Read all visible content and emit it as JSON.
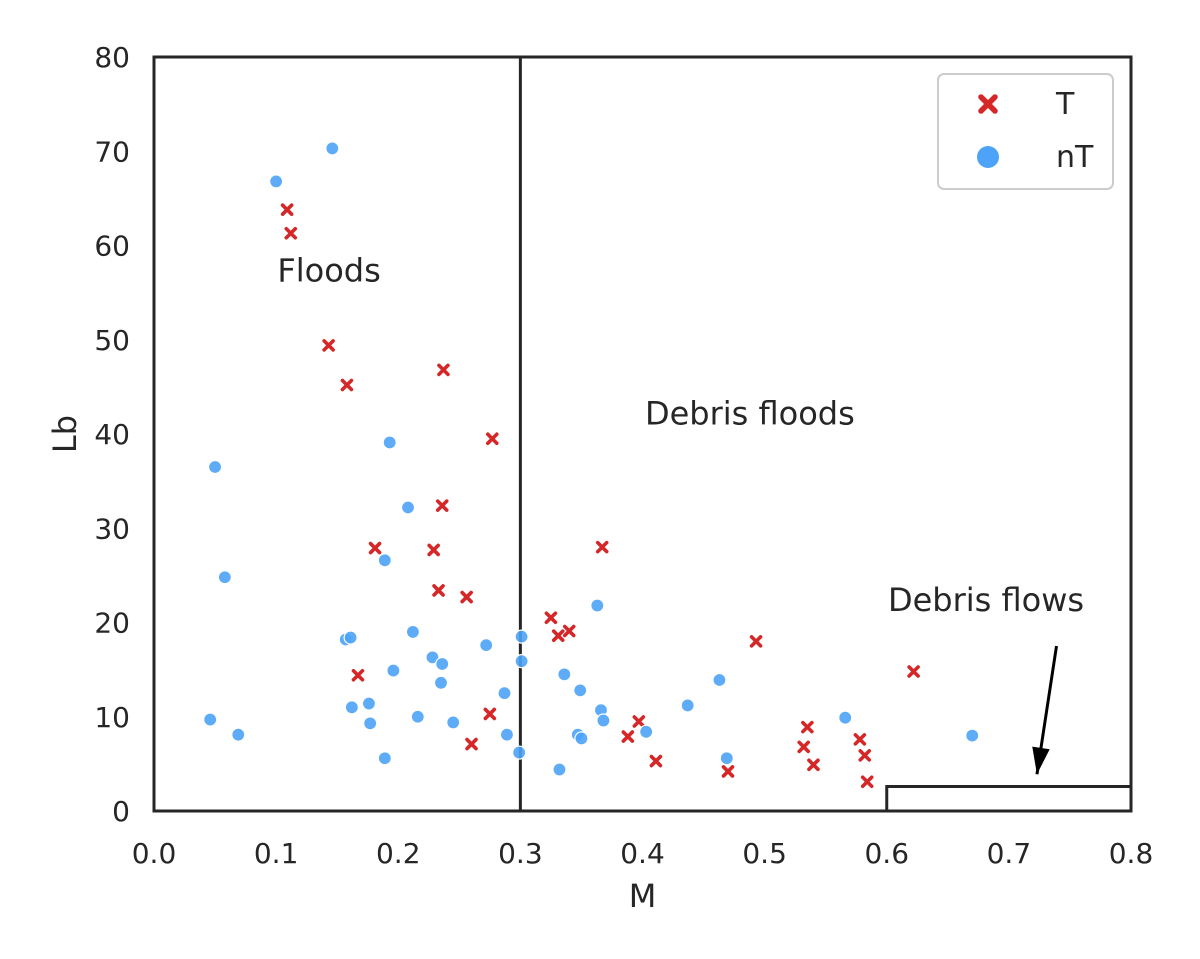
{
  "chart_data": {
    "type": "scatter",
    "xlabel": "M",
    "ylabel": "Lb",
    "xlim": [
      0.0,
      0.8
    ],
    "ylim": [
      0,
      80
    ],
    "x_ticks": [
      "0.0",
      "0.1",
      "0.2",
      "0.3",
      "0.4",
      "0.5",
      "0.6",
      "0.7",
      "0.8"
    ],
    "y_ticks": [
      "0",
      "10",
      "20",
      "30",
      "40",
      "50",
      "60",
      "70",
      "80"
    ],
    "grid": false,
    "legend_position": "top-right",
    "colors": {
      "T": "#d62728",
      "nT": "#4da3f7"
    },
    "series": [
      {
        "name": "T",
        "marker": "x",
        "points": [
          [
            0.109,
            63.8
          ],
          [
            0.112,
            61.3
          ],
          [
            0.143,
            49.4
          ],
          [
            0.158,
            45.2
          ],
          [
            0.237,
            46.8
          ],
          [
            0.277,
            39.5
          ],
          [
            0.236,
            32.4
          ],
          [
            0.181,
            27.9
          ],
          [
            0.229,
            27.7
          ],
          [
            0.367,
            28.0
          ],
          [
            0.233,
            23.4
          ],
          [
            0.256,
            22.7
          ],
          [
            0.325,
            20.5
          ],
          [
            0.331,
            18.6
          ],
          [
            0.34,
            19.1
          ],
          [
            0.493,
            18.0
          ],
          [
            0.167,
            14.4
          ],
          [
            0.275,
            10.3
          ],
          [
            0.26,
            7.1
          ],
          [
            0.397,
            9.5
          ],
          [
            0.388,
            7.9
          ],
          [
            0.411,
            5.3
          ],
          [
            0.47,
            4.2
          ],
          [
            0.535,
            8.9
          ],
          [
            0.532,
            6.8
          ],
          [
            0.54,
            4.9
          ],
          [
            0.578,
            7.6
          ],
          [
            0.582,
            5.9
          ],
          [
            0.584,
            3.1
          ],
          [
            0.622,
            14.8
          ]
        ]
      },
      {
        "name": "nT",
        "marker": "o",
        "points": [
          [
            0.1,
            66.8
          ],
          [
            0.146,
            70.3
          ],
          [
            0.05,
            36.5
          ],
          [
            0.193,
            39.1
          ],
          [
            0.208,
            32.2
          ],
          [
            0.058,
            24.8
          ],
          [
            0.189,
            26.6
          ],
          [
            0.157,
            18.2
          ],
          [
            0.161,
            18.4
          ],
          [
            0.212,
            19.0
          ],
          [
            0.272,
            17.6
          ],
          [
            0.301,
            18.5
          ],
          [
            0.196,
            14.9
          ],
          [
            0.228,
            16.3
          ],
          [
            0.236,
            15.6
          ],
          [
            0.301,
            15.9
          ],
          [
            0.235,
            13.6
          ],
          [
            0.287,
            12.5
          ],
          [
            0.336,
            14.5
          ],
          [
            0.349,
            12.8
          ],
          [
            0.363,
            21.8
          ],
          [
            0.162,
            11.0
          ],
          [
            0.176,
            11.4
          ],
          [
            0.177,
            9.3
          ],
          [
            0.216,
            10.0
          ],
          [
            0.245,
            9.4
          ],
          [
            0.289,
            8.1
          ],
          [
            0.299,
            6.2
          ],
          [
            0.332,
            4.4
          ],
          [
            0.366,
            10.7
          ],
          [
            0.368,
            9.6
          ],
          [
            0.347,
            8.1
          ],
          [
            0.35,
            7.7
          ],
          [
            0.403,
            8.4
          ],
          [
            0.437,
            11.2
          ],
          [
            0.463,
            13.9
          ],
          [
            0.469,
            5.6
          ],
          [
            0.566,
            9.9
          ],
          [
            0.67,
            8.0
          ],
          [
            0.046,
            9.7
          ],
          [
            0.069,
            8.1
          ],
          [
            0.189,
            5.6
          ]
        ]
      }
    ],
    "regions": {
      "divider_x": 0.3,
      "debris_flows_box": {
        "x": [
          0.6,
          0.8
        ],
        "y": [
          0,
          2.6
        ]
      },
      "arrow": {
        "from": [
          0.739,
          17.5
        ],
        "to": [
          0.723,
          3.9
        ]
      }
    },
    "annotations": [
      {
        "text": "Floods",
        "x": 0.101,
        "y": 56.2
      },
      {
        "text": "Debris floods",
        "x": 0.402,
        "y": 41.0
      },
      {
        "text": "Debris flows",
        "x": 0.601,
        "y": 21.2
      }
    ]
  }
}
